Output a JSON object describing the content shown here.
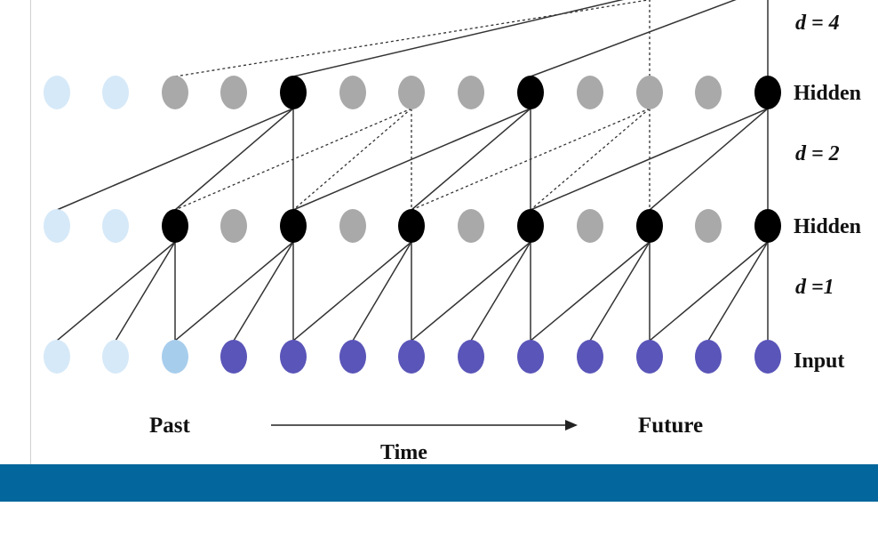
{
  "labels": {
    "d4": "d = 4",
    "d2": "d = 2",
    "d1": "d =1",
    "hidden_top": "Hidden",
    "hidden_mid": "Hidden",
    "input": "Input",
    "past": "Past",
    "future": "Future",
    "time": "Time"
  },
  "colors": {
    "active_hidden": "#000000",
    "inactive_hidden": "#a9a9a9",
    "padding_node": "#d6e9f8",
    "padding_edge_node": "#a7cdec",
    "input_node": "#5a55b8",
    "edge_solid": "#333333",
    "edge_dashed": "#333333",
    "band": "#03669c"
  }
}
